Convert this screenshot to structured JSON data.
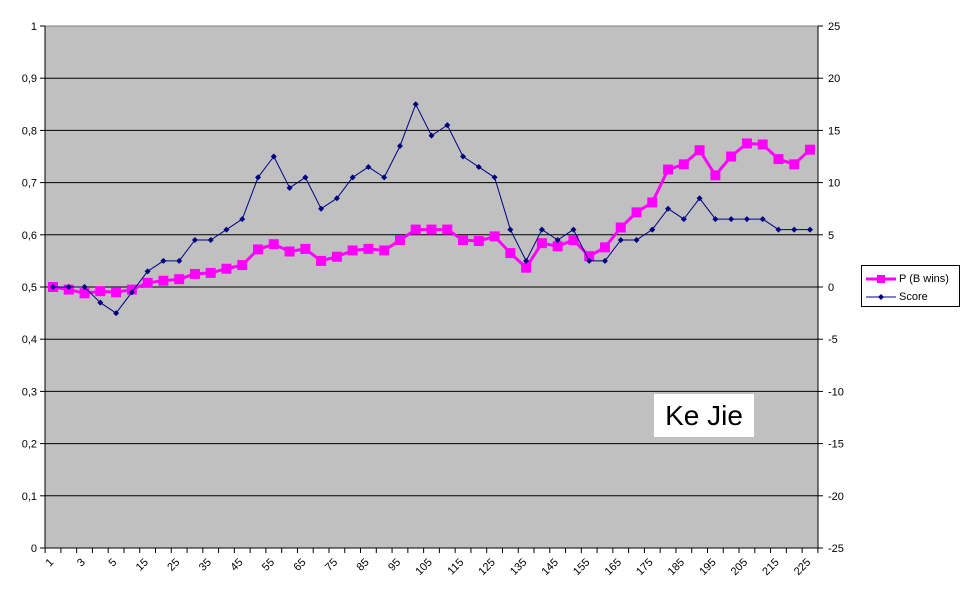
{
  "chart_data": {
    "type": "line",
    "title": "",
    "xlabel": "",
    "ylabel": "",
    "y_left_lim": [
      0,
      1
    ],
    "y_right_lim": [
      -25,
      25
    ],
    "y_left_ticks": [
      "0",
      "0,1",
      "0,2",
      "0,3",
      "0,4",
      "0,5",
      "0,6",
      "0,7",
      "0,8",
      "0,9",
      "1"
    ],
    "y_right_ticks": [
      "-25",
      "-20",
      "-15",
      "-10",
      "-5",
      "0",
      "5",
      "10",
      "15",
      "20",
      "25"
    ],
    "x_tick_labels": [
      "1",
      "3",
      "5",
      "15",
      "25",
      "35",
      "45",
      "55",
      "65",
      "75",
      "85",
      "95",
      "105",
      "115",
      "125",
      "135",
      "145",
      "155",
      "165",
      "175",
      "185",
      "195",
      "205",
      "215",
      "225"
    ],
    "grid": "horizontal",
    "plot_background": "#c0c0c0",
    "legend_position": "right",
    "annotation": "Ke Jie",
    "series": [
      {
        "name": "P (B wins)",
        "axis": "left",
        "color": "#ff00ff",
        "marker": "square",
        "values": [
          0.5,
          0.495,
          0.488,
          0.492,
          0.49,
          0.495,
          0.508,
          0.512,
          0.515,
          0.525,
          0.527,
          0.535,
          0.542,
          0.572,
          0.582,
          0.568,
          0.573,
          0.55,
          0.558,
          0.57,
          0.573,
          0.57,
          0.59,
          0.61,
          0.61,
          0.61,
          0.59,
          0.588,
          0.597,
          0.565,
          0.537,
          0.584,
          0.578,
          0.59,
          0.559,
          0.576,
          0.614,
          0.643,
          0.662,
          0.725,
          0.735,
          0.762,
          0.714,
          0.75,
          0.775,
          0.773,
          0.745,
          0.735,
          0.763
        ]
      },
      {
        "name": "Score",
        "axis": "right",
        "color": "#000080",
        "marker": "diamond",
        "values": [
          0,
          0,
          0,
          -1.5,
          -2.5,
          -0.5,
          1.5,
          2.5,
          2.5,
          4.5,
          4.5,
          5.5,
          6.5,
          10.5,
          12.5,
          9.5,
          10.5,
          7.5,
          8.5,
          10.5,
          11.5,
          10.5,
          13.5,
          17.5,
          14.5,
          15.5,
          12.5,
          11.5,
          10.5,
          5.5,
          2.5,
          5.5,
          4.5,
          5.5,
          2.5,
          2.5,
          4.5,
          4.5,
          5.5,
          7.5,
          6.5,
          8.5,
          6.5,
          6.5,
          6.5,
          6.5,
          5.5,
          5.5,
          5.5
        ]
      }
    ]
  }
}
